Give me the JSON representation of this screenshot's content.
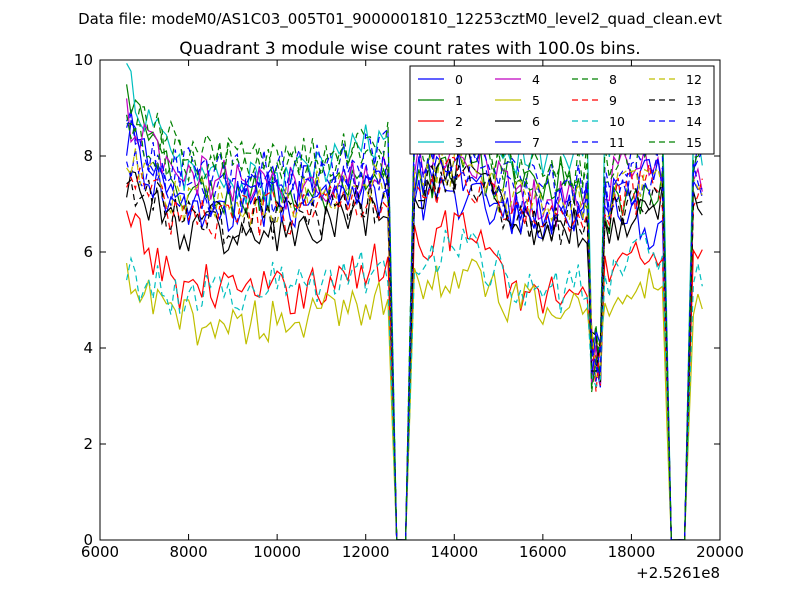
{
  "chart_data": {
    "type": "line",
    "suptitle": "Data file: modeM0/AS1C03_005T01_9000001810_12253cztM0_level2_quad_clean.evt",
    "title": "Quadrant 3 module wise count rates with 100.0s bins.",
    "xlabel": "",
    "ylabel": "",
    "x_offset_label": "+2.5261e8",
    "xlim": [
      6000,
      20000
    ],
    "ylim": [
      0,
      10
    ],
    "x_ticks": [
      6000,
      8000,
      10000,
      12000,
      14000,
      16000,
      18000,
      20000
    ],
    "x_tick_labels": [
      "6000",
      "8000",
      "10000",
      "12000",
      "14000",
      "16000",
      "18000",
      "20000"
    ],
    "y_ticks": [
      0,
      2,
      4,
      6,
      8,
      10
    ],
    "y_tick_labels": [
      "0",
      "2",
      "4",
      "6",
      "8",
      "10"
    ],
    "grid": false,
    "legend_position": "top-right",
    "legend_columns": 4,
    "gaps": [
      [
        12700,
        12900
      ],
      [
        18900,
        19200
      ]
    ],
    "bin_width": 100,
    "series": [
      {
        "name": "0",
        "color": "#0000ff",
        "style": "solid",
        "profile": [
          8.6,
          7.0,
          6.8,
          7.5,
          7.6,
          7.3,
          7.0,
          7.2,
          6.6,
          6.8,
          7.3,
          6.4,
          8.3
        ]
      },
      {
        "name": "1",
        "color": "#008000",
        "style": "solid",
        "profile": [
          9.3,
          7.3,
          7.1,
          7.2,
          7.1,
          7.3,
          7.5,
          7.8,
          7.4,
          7.6,
          6.8,
          7.2,
          8.1
        ]
      },
      {
        "name": "2",
        "color": "#ff0000",
        "style": "solid",
        "profile": [
          6.6,
          5.3,
          5.3,
          5.1,
          5.3,
          5.6,
          6.2,
          6.6,
          5.2,
          5.1,
          5.8,
          6.2,
          5.7
        ]
      },
      {
        "name": "3",
        "color": "#00bfbf",
        "style": "solid",
        "profile": [
          9.6,
          7.8,
          7.5,
          7.3,
          7.8,
          8.2,
          8.7,
          9.1,
          8.0,
          8.0,
          8.4,
          8.9,
          8.3
        ]
      },
      {
        "name": "4",
        "color": "#bf00bf",
        "style": "solid",
        "profile": [
          8.8,
          7.5,
          7.5,
          7.3,
          7.5,
          7.6,
          7.9,
          8.2,
          7.3,
          7.0,
          7.5,
          7.9,
          7.6
        ]
      },
      {
        "name": "5",
        "color": "#bfbf00",
        "style": "solid",
        "profile": [
          5.3,
          4.6,
          4.5,
          4.6,
          4.6,
          5.0,
          5.3,
          5.6,
          4.9,
          4.8,
          5.1,
          5.4,
          5.0
        ]
      },
      {
        "name": "6",
        "color": "#000000",
        "style": "solid",
        "profile": [
          7.6,
          6.5,
          6.4,
          6.3,
          6.5,
          6.7,
          7.1,
          7.8,
          6.7,
          6.5,
          6.6,
          7.1,
          6.8
        ]
      },
      {
        "name": "7",
        "color": "#0000ff",
        "style": "solid",
        "profile": [
          8.4,
          6.9,
          6.9,
          7.0,
          7.0,
          7.2,
          7.5,
          7.7,
          6.9,
          6.8,
          7.1,
          7.6,
          7.2
        ]
      },
      {
        "name": "8",
        "color": "#008000",
        "style": "dashed",
        "profile": [
          9.0,
          8.2,
          8.0,
          7.8,
          7.9,
          8.0,
          8.2,
          8.4,
          7.7,
          7.5,
          7.9,
          8.3,
          7.9
        ]
      },
      {
        "name": "9",
        "color": "#ff0000",
        "style": "dashed",
        "profile": [
          7.6,
          6.8,
          6.7,
          6.8,
          6.9,
          7.1,
          7.4,
          7.6,
          6.9,
          6.7,
          7.0,
          7.4,
          7.1
        ]
      },
      {
        "name": "10",
        "color": "#00bfbf",
        "style": "dashed",
        "profile": [
          5.6,
          5.1,
          5.2,
          5.3,
          5.4,
          5.6,
          5.9,
          6.1,
          5.4,
          5.2,
          5.5,
          6.0,
          5.7
        ]
      },
      {
        "name": "11",
        "color": "#0000ff",
        "style": "dashed",
        "profile": [
          8.0,
          7.3,
          7.2,
          7.3,
          7.4,
          7.6,
          7.8,
          8.0,
          7.2,
          7.0,
          7.3,
          7.7,
          7.4
        ]
      },
      {
        "name": "12",
        "color": "#bfbf00",
        "style": "dashed",
        "profile": [
          7.8,
          7.1,
          7.0,
          7.1,
          7.2,
          7.4,
          7.6,
          7.9,
          7.1,
          6.9,
          7.2,
          7.6,
          7.3
        ]
      },
      {
        "name": "13",
        "color": "#000000",
        "style": "dashed",
        "profile": [
          7.4,
          6.7,
          6.6,
          6.7,
          6.8,
          7.0,
          7.3,
          7.5,
          6.8,
          6.6,
          6.9,
          7.3,
          7.0
        ]
      },
      {
        "name": "14",
        "color": "#0000ff",
        "style": "dashed",
        "profile": [
          8.5,
          7.7,
          7.6,
          7.7,
          7.8,
          8.0,
          8.3,
          8.6,
          7.6,
          7.4,
          7.8,
          8.2,
          7.9
        ]
      },
      {
        "name": "15",
        "color": "#008000",
        "style": "dashed",
        "profile": [
          8.7,
          7.9,
          7.8,
          7.9,
          8.0,
          8.2,
          8.5,
          8.8,
          7.8,
          7.6,
          8.0,
          8.4,
          8.1
        ]
      }
    ]
  }
}
